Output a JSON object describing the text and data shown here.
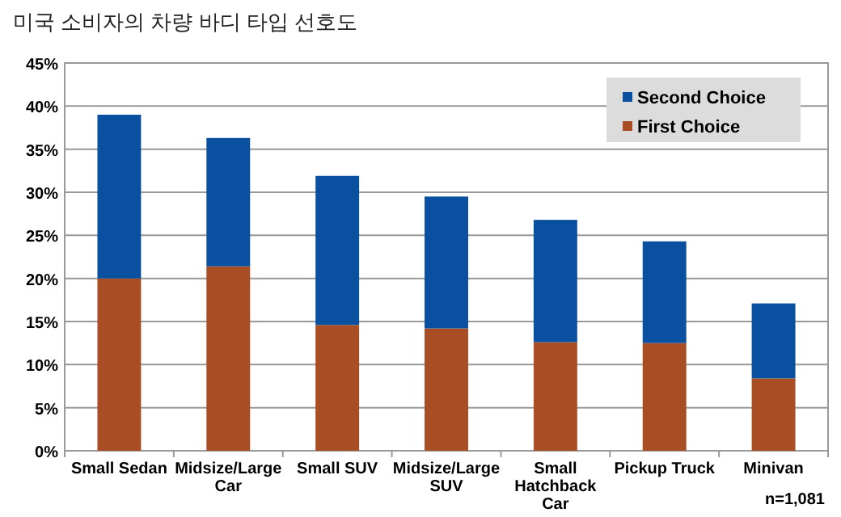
{
  "chart_data": {
    "type": "bar",
    "stacked": true,
    "title": "미국 소비자의 차량 바디 타입 선호도",
    "categories": [
      "Small Sedan",
      "Midsize/Large Car",
      "Small SUV",
      "Midsize/Large SUV",
      "Small Hatchback Car",
      "Pickup Truck",
      "Minivan"
    ],
    "series": [
      {
        "name": "First Choice",
        "color": "#a94e24",
        "values": [
          20,
          21.4,
          14.6,
          14.2,
          12.6,
          12.5,
          8.4
        ]
      },
      {
        "name": "Second Choice",
        "color": "#0a50a0",
        "values": [
          19,
          14.9,
          17.3,
          15.3,
          14.2,
          11.8,
          8.7
        ]
      }
    ],
    "ylim": [
      0,
      45
    ],
    "yticks": [
      {
        "value": 0,
        "label": "0%"
      },
      {
        "value": 5,
        "label": "5%"
      },
      {
        "value": 10,
        "label": "10%"
      },
      {
        "value": 15,
        "label": "15%"
      },
      {
        "value": 20,
        "label": "20%"
      },
      {
        "value": 25,
        "label": "25%"
      },
      {
        "value": 30,
        "label": "30%"
      },
      {
        "value": 35,
        "label": "35%"
      },
      {
        "value": 40,
        "label": "40%"
      },
      {
        "value": 45,
        "label": "45%"
      }
    ],
    "grid": "y",
    "legend": "top right",
    "annotations": [
      "n=1,081"
    ]
  }
}
